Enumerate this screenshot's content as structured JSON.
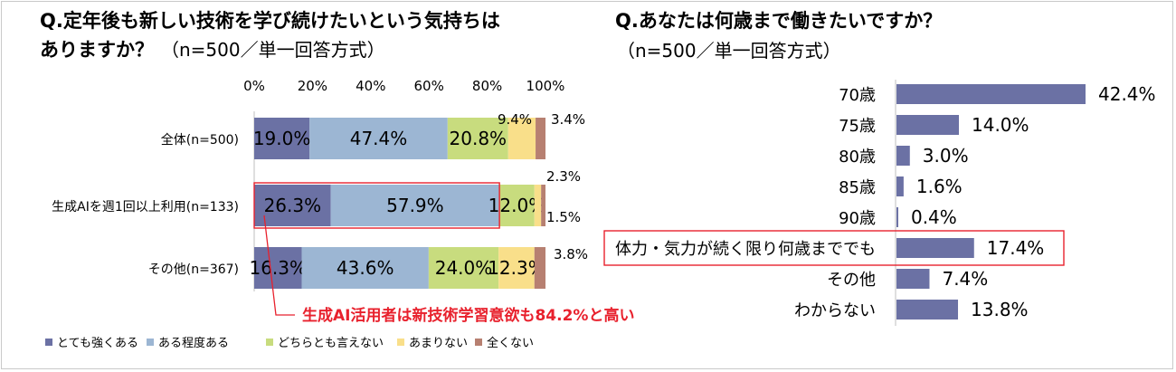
{
  "left": {
    "title_line1": "Q.定年後も新しい技術を学び続けたいという気持ちは",
    "title_line2": "ありますか？",
    "title_note": "（n=500／単一回答方式）"
  },
  "right": {
    "title_line1": "Q.あなたは何歳まで働きたいですか？",
    "title_line2": "（n=500／単一回答方式）"
  },
  "callout": "生成AI活用者は新技術学習意欲も84.2%と高い",
  "chart_data": [
    {
      "type": "bar",
      "orientation": "horizontal-stacked-100",
      "xlim": [
        0,
        100
      ],
      "ticks": [
        "0%",
        "20%",
        "40%",
        "60%",
        "80%",
        "100%"
      ],
      "categories": [
        "全体(n=500)",
        "生成AIを週1回以上利用(n=133)",
        "その他(n=367)"
      ],
      "series": [
        {
          "name": "とても強くある",
          "color": "#6b71a4",
          "values": [
            19.0,
            26.3,
            16.3
          ]
        },
        {
          "name": "ある程度ある",
          "color": "#9cb6d3",
          "values": [
            47.4,
            57.9,
            43.6
          ]
        },
        {
          "name": "どちらとも言えない",
          "color": "#c8dc7e",
          "values": [
            20.8,
            12.0,
            24.0
          ]
        },
        {
          "name": "あまりない",
          "color": "#f9df8a",
          "values": [
            9.4,
            2.3,
            12.3
          ]
        },
        {
          "name": "全くない",
          "color": "#b78071",
          "values": [
            3.4,
            1.5,
            3.8
          ]
        }
      ],
      "labels": [
        [
          "19.0%",
          "47.4%",
          "20.8%",
          "9.4%",
          "3.4%"
        ],
        [
          "26.3%",
          "57.9%",
          "12.0%",
          "2.3%",
          "1.5%"
        ],
        [
          "16.3%",
          "43.6%",
          "24.0%",
          "12.3%",
          "3.8%"
        ]
      ],
      "legend_position": "bottom"
    },
    {
      "type": "bar",
      "orientation": "horizontal",
      "bar_color": "#6b71a4",
      "categories": [
        "70歳",
        "75歳",
        "80歳",
        "85歳",
        "90歳",
        "体力・気力が続く限り何歳まででも",
        "その他",
        "わからない"
      ],
      "values": [
        42.4,
        14.0,
        3.0,
        1.6,
        0.4,
        17.4,
        7.4,
        13.8
      ],
      "value_labels": [
        "42.4%",
        "14.0%",
        "3.0%",
        "1.6%",
        "0.4%",
        "17.4%",
        "7.4%",
        "13.8%"
      ],
      "highlight": "体力・気力が続く限り何歳まででも"
    }
  ]
}
